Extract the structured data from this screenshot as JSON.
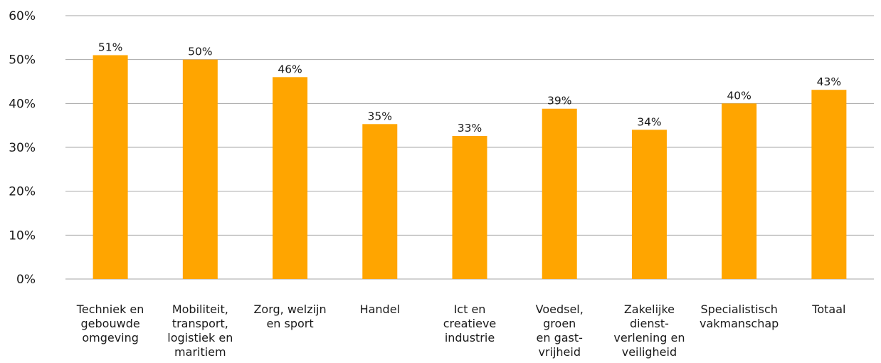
{
  "chart_data": {
    "type": "bar",
    "categories": [
      [
        "Techniek en",
        "gebouwde",
        "omgeving"
      ],
      [
        "Mobiliteit,",
        "transport,",
        "logistiek en",
        "maritiem"
      ],
      [
        "Zorg, welzijn",
        "en sport"
      ],
      [
        "Handel"
      ],
      [
        "Ict en",
        "creatieve",
        "industrie"
      ],
      [
        "Voedsel,",
        "groen",
        "en gast-",
        "vrijheid"
      ],
      [
        "Zakelijke",
        "dienst-",
        "verlening en",
        "veiligheid"
      ],
      [
        "Specialistisch",
        "vakmanschap"
      ],
      [
        "Totaal"
      ]
    ],
    "values": [
      51,
      50,
      46,
      35.3,
      32.6,
      38.8,
      34,
      40,
      43.1
    ],
    "data_labels": [
      "51%",
      "50%",
      "46%",
      "35%",
      "33%",
      "39%",
      "34%",
      "40%",
      "43%"
    ],
    "ylim": [
      0,
      60
    ],
    "yticks": [
      0,
      10,
      20,
      30,
      40,
      50,
      60
    ],
    "ytick_labels": [
      "0%",
      "10%",
      "20%",
      "30%",
      "40%",
      "50%",
      "60%"
    ],
    "grid": true,
    "legend": "none",
    "bar_color": "#FFA500",
    "grid_color": "#a6a6a6"
  }
}
